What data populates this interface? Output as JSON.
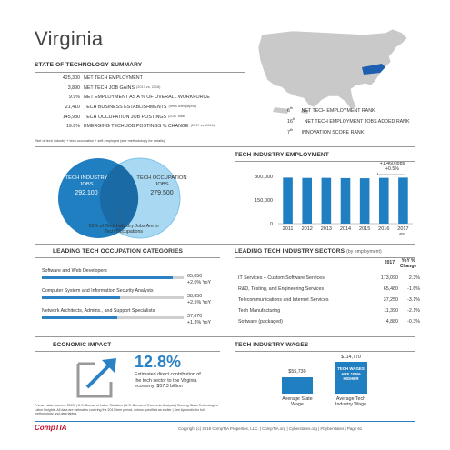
{
  "header": {
    "state": "Virginia"
  },
  "summary": {
    "heading": "STATE OF TECHNOLOGY SUMMARY",
    "rows": [
      {
        "value": "425,300",
        "label": "NET TECH EMPLOYMENT",
        "note": "*"
      },
      {
        "value": "3,890",
        "label": "NET TECH JOB GAINS",
        "note": "(2017 vs. 2016)"
      },
      {
        "value": "9.9%",
        "label": "NET EMPLOYMENT AS A % OF OVERALL WORKFORCE",
        "note": ""
      },
      {
        "value": "21,410",
        "label": "TECH BUSINESS ESTABLISHMENTS",
        "note": "(firms with payroll)"
      },
      {
        "value": "145,980",
        "label": "TECH OCCUPATION JOB POSTINGS",
        "note": "(2017 total)"
      },
      {
        "value": "19.8%",
        "label": "EMERGING TECH JOB POSTINGS % CHANGE",
        "note": "(2017 vs. 2016)"
      }
    ],
    "ranks": [
      {
        "rank": "6",
        "suffix": "th",
        "label": "NET TECH EMPLOYMENT RANK"
      },
      {
        "rank": "16",
        "suffix": "th",
        "label": "NET TECH EMPLOYMENT JOBS ADDED RANK"
      },
      {
        "rank": "7",
        "suffix": "th",
        "label": "INNOVATION SCORE RANK"
      }
    ],
    "footnote": "*Net of tech industry + tech occupation + self-employed (see methodology for details)"
  },
  "venn": {
    "left_title": "TECH INDUSTRY JOBS",
    "left_value": "292,100",
    "right_title": "TECH OCCUPATION JOBS",
    "right_value": "279,500",
    "caption": "53% of Tech Industry Jobs Are in Tech Occupations",
    "colors": {
      "left": "#1f7fc0",
      "right": "#a8d8f2"
    }
  },
  "chart_data": {
    "type": "bar",
    "title": "TECH INDUSTRY EMPLOYMENT",
    "categories": [
      "2011",
      "2012",
      "2013",
      "2014",
      "2015",
      "2016",
      "2017 est."
    ],
    "values": [
      292000,
      290000,
      290500,
      289000,
      288000,
      290640,
      292100
    ],
    "ylim": [
      0,
      300000
    ],
    "yticks": [
      "0",
      "150,000",
      "300,000"
    ],
    "annotation": "+1,460 jobs",
    "annotation_pct": "+0.5%",
    "grid": false,
    "color": "#1f7fc0"
  },
  "occupations": {
    "heading": "LEADING TECH OCCUPATION CATEGORIES",
    "items": [
      {
        "label": "Software and Web Developers",
        "value": "65,050",
        "yoy": "+2.0% YoY",
        "fraction": 0.92
      },
      {
        "label": "Computer System and Information Security Analysts",
        "value": "38,850",
        "yoy": "+2.5% YoY",
        "fraction": 0.55
      },
      {
        "label": "Network Architects, Admins., and Support Specialists",
        "value": "37,670",
        "yoy": "+1.3% YoY",
        "fraction": 0.53
      }
    ]
  },
  "sectors": {
    "heading": "LEADING TECH INDUSTRY SECTORS",
    "subheading": "(by employment)",
    "col_year": "2017",
    "col_yoy": "YoY % Change",
    "rows": [
      {
        "name": "IT Services + Custom Software Services",
        "value": "173,090",
        "change": "2.3%"
      },
      {
        "name": "R&D, Testing, and Engineering Services",
        "value": "65,480",
        "change": "-1.6%"
      },
      {
        "name": "Telecommunications and Internet Services",
        "value": "37,250",
        "change": "-3.1%"
      },
      {
        "name": "Tech Manufacturing",
        "value": "11,390",
        "change": "-2.1%"
      },
      {
        "name": "Software (packaged)",
        "value": "4,880",
        "change": "-0.3%"
      }
    ]
  },
  "economic": {
    "heading": "ECONOMIC IMPACT",
    "percent": "12.8%",
    "text": "Estimated direct contribution of the tech sector to the Virginia economy: $57.3 billion",
    "sources": "Primary data sources: EMSI | U.S. Bureau of Labor Statistics | U.S. Bureau of Economic Analysis | Burning Glass Technologies Labor Insights. All data are estimates covering the 2017 time period, unless specified as earlier | See Appendix for full methodology and data tables."
  },
  "wages": {
    "heading": "TECH INDUSTRY WAGES",
    "state_value": "$55,730",
    "state_label": "Average State Wage",
    "tech_value": "$114,770",
    "tech_label": "Average Tech Industry Wage",
    "tech_badge": "TECH WAGES ARE 106% HIGHER"
  },
  "footer": {
    "brand": "CompTIA",
    "text": "Copyright (c) 2018 CompTIA Properties, LLC.  |  CompTIA.org  |  Cyberstates.org  |  #Cyberstates  |  Page 61"
  }
}
